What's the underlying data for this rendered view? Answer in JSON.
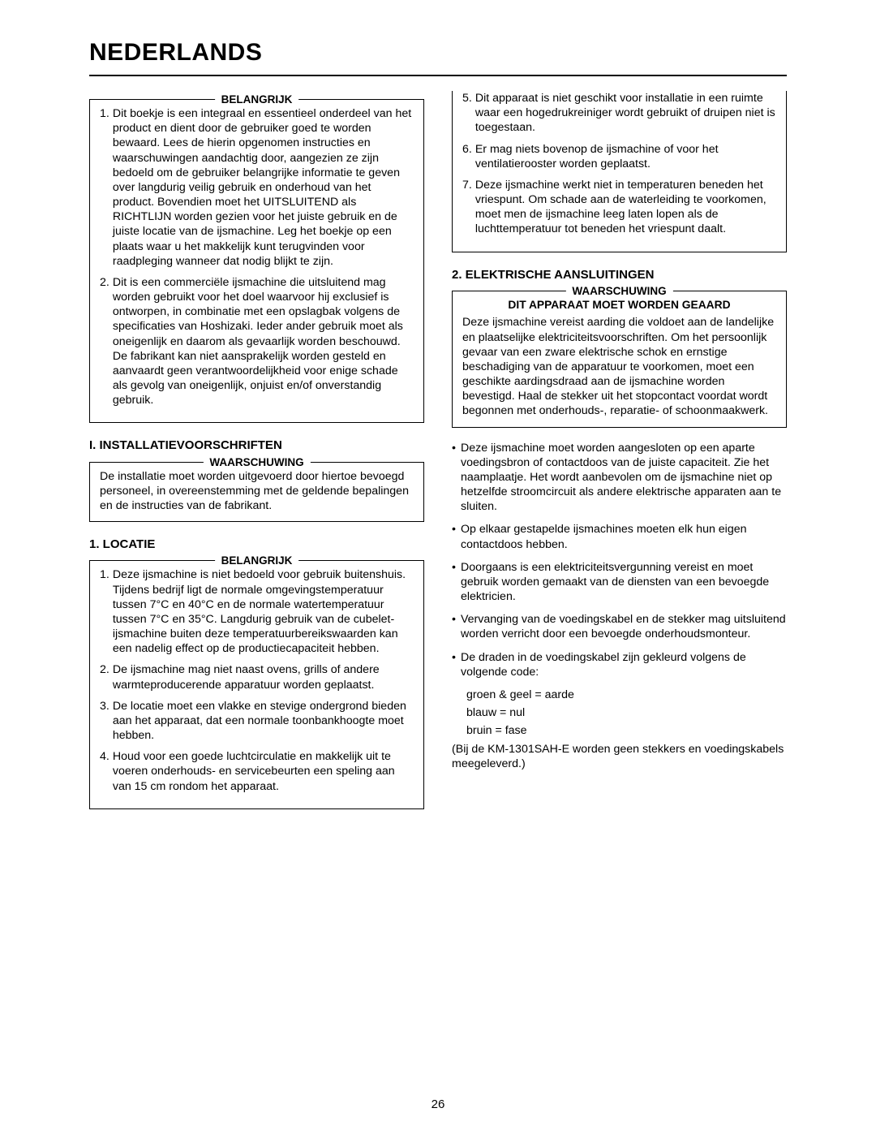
{
  "title": "NEDERLANDS",
  "pageNumber": "26",
  "left": {
    "box1": {
      "title": "BELANGRIJK",
      "items": [
        {
          "n": "1.",
          "t": "Dit boekje is een integraal en essentieel onderdeel van het product en dient door de gebruiker goed te worden bewaard. Lees de hierin opgenomen instructies en waarschuwingen aandachtig door, aangezien ze zijn bedoeld om de gebruiker belangrijke informatie te geven over langdurig veilig gebruik en onderhoud van het product. Bovendien moet het UITSLUITEND als RICHTLIJN worden gezien voor het juiste gebruik en de juiste locatie van de ijsmachine. Leg het boekje op een plaats waar u het makkelijk kunt terugvinden voor raadpleging wanneer dat nodig blijkt te zijn."
        },
        {
          "n": "2.",
          "t": "Dit is een commerciële ijsmachine die uitsluitend mag worden gebruikt voor het doel waarvoor hij exclusief is ontworpen, in combinatie met een opslagbak volgens de specificaties van Hoshizaki. Ieder ander gebruik moet als oneigenlijk en daarom als gevaarlijk worden beschouwd. De fabrikant kan niet aansprakelijk worden gesteld en aanvaardt geen verantwoordelijkheid voor enige schade als gevolg van oneigenlijk, onjuist en/of onverstandig gebruik."
        }
      ]
    },
    "heading1": "I. INSTALLATIEVOORSCHRIFTEN",
    "box2": {
      "title": "WAARSCHUWING",
      "text": "De installatie moet worden uitgevoerd door hiertoe bevoegd personeel, in overeenstemming met de geldende bepalingen en de instructies van de fabrikant."
    },
    "heading2": "1. LOCATIE",
    "box3": {
      "title": "BELANGRIJK",
      "items": [
        {
          "n": "1.",
          "t": "Deze ijsmachine is niet bedoeld voor gebruik buitenshuis. Tijdens bedrijf ligt de normale omgevingstemperatuur tussen 7°C en 40°C en de normale watertemperatuur tussen 7°C en 35°C. Langdurig gebruik van de cubelet-ijsmachine buiten deze temperatuurbereikswaarden kan een nadelig effect op de productiecapaciteit hebben."
        },
        {
          "n": "2.",
          "t": "De ijsmachine mag niet naast ovens, grills of andere warmteproducerende apparatuur worden geplaatst."
        },
        {
          "n": "3.",
          "t": "De locatie moet een vlakke en stevige ondergrond bieden aan het apparaat, dat een normale toonbankhoogte moet hebben."
        },
        {
          "n": "4.",
          "t": "Houd voor een goede luchtcirculatie en makkelijk uit te voeren onderhouds- en servicebeurten een speling aan van 15 cm rondom het apparaat."
        }
      ]
    }
  },
  "right": {
    "topItems": [
      {
        "n": "5.",
        "t": "Dit apparaat is niet geschikt voor installatie in een ruimte waar een hogedrukreiniger wordt gebruikt of druipen niet is toegestaan."
      },
      {
        "n": "6.",
        "t": "Er mag niets bovenop de ijsmachine of voor het ventilatierooster worden geplaatst."
      },
      {
        "n": "7.",
        "t": "Deze ijsmachine werkt niet in temperaturen beneden het vriespunt. Om schade aan de waterleiding te voorkomen, moet men de ijsmachine leeg laten lopen als de luchttemperatuur tot beneden het vriespunt daalt."
      }
    ],
    "heading1": "2. ELEKTRISCHE AANSLUITINGEN",
    "box1": {
      "title": "WAARSCHUWING",
      "subtitle": "DIT APPARAAT MOET WORDEN GEAARD",
      "text": "Deze ijsmachine vereist aarding die voldoet aan de landelijke en plaatselijke elektriciteitsvoorschriften. Om het persoonlijk gevaar van een zware elektrische schok en ernstige beschadiging van de apparatuur te voorkomen, moet een geschikte aardingsdraad aan de ijsmachine worden bevestigd. Haal de stekker uit het stopcontact voordat wordt begonnen met onderhouds-, reparatie- of schoonmaakwerk."
    },
    "bullets": [
      "Deze ijsmachine moet worden aangesloten op een aparte voedingsbron of contactdoos van de juiste capaciteit. Zie het naamplaatje. Het wordt aanbevolen om de ijsmachine niet op hetzelfde stroomcircuit als andere elektrische apparaten aan te sluiten.",
      "Op elkaar gestapelde ijsmachines moeten elk hun eigen contactdoos hebben.",
      "Doorgaans is een elektriciteitsvergunning vereist en moet gebruik worden gemaakt van de diensten van een bevoegde elektricien.",
      "Vervanging van de voedingskabel en de stekker mag uitsluitend worden verricht door een bevoegde onderhoudsmonteur.",
      "De draden in de voedingskabel zijn gekleurd volgens de volgende code:"
    ],
    "codeLines": [
      "groen & geel = aarde",
      "blauw = nul",
      "bruin = fase"
    ],
    "trailing": "(Bij de KM-1301SAH-E worden geen stekkers en voedingskabels meegeleverd.)"
  }
}
